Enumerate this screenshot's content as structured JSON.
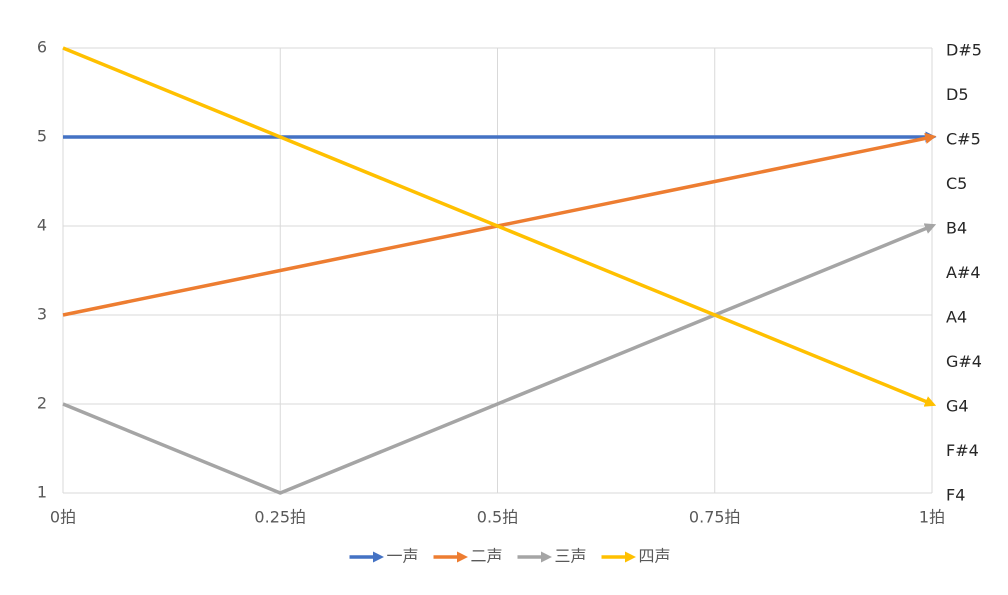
{
  "chart_data": {
    "type": "line",
    "categories": [
      "0拍",
      "0.25拍",
      "0.5拍",
      "0.75拍",
      "1拍"
    ],
    "series": [
      {
        "name": "一声",
        "color": "#4472c4",
        "values": [
          5,
          5,
          5,
          5,
          5
        ]
      },
      {
        "name": "二声",
        "color": "#ed7d31",
        "values": [
          3,
          3.5,
          4,
          4.5,
          5
        ]
      },
      {
        "name": "三声",
        "color": "#a5a5a5",
        "values": [
          2,
          1,
          2,
          3,
          4
        ]
      },
      {
        "name": "四声",
        "color": "#ffc000",
        "values": [
          6,
          5,
          4,
          3,
          2
        ]
      }
    ],
    "ylim": [
      1,
      6
    ],
    "yticks": [
      1,
      2,
      3,
      4,
      5,
      6
    ],
    "y2lim": [
      1,
      6
    ],
    "y2ticks": [
      {
        "value": 1,
        "label": "F4"
      },
      {
        "value": 1.5,
        "label": "F#4"
      },
      {
        "value": 2,
        "label": "G4"
      },
      {
        "value": 2.5,
        "label": "G#4"
      },
      {
        "value": 3,
        "label": "A4"
      },
      {
        "value": 3.5,
        "label": "A#4"
      },
      {
        "value": 4,
        "label": "B4"
      },
      {
        "value": 4.5,
        "label": "C5"
      },
      {
        "value": 5,
        "label": "C#5"
      },
      {
        "value": 5.5,
        "label": "D5"
      },
      {
        "value": 6,
        "label": "D#5"
      }
    ],
    "grid": true,
    "legend": "bottom",
    "line_end": "arrow"
  }
}
